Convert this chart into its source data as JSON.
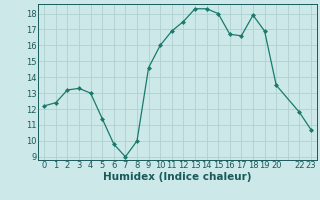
{
  "x": [
    0,
    1,
    2,
    3,
    4,
    5,
    6,
    7,
    8,
    9,
    10,
    11,
    12,
    13,
    14,
    15,
    16,
    17,
    18,
    19,
    20,
    22,
    23
  ],
  "y": [
    12.2,
    12.4,
    13.2,
    13.3,
    13.0,
    11.4,
    9.8,
    9.0,
    10.0,
    14.6,
    16.0,
    16.9,
    17.5,
    18.3,
    18.3,
    18.0,
    16.7,
    16.6,
    17.9,
    16.9,
    13.5,
    11.8,
    10.7
  ],
  "line_color": "#1a7a6e",
  "marker_color": "#1a7a6e",
  "bg_color": "#cce8e8",
  "grid_major_color": "#b0d0d0",
  "grid_minor_color": "#c4dede",
  "xlabel": "Humidex (Indice chaleur)",
  "xlim": [
    -0.5,
    23.5
  ],
  "ylim": [
    8.8,
    18.6
  ],
  "yticks": [
    9,
    10,
    11,
    12,
    13,
    14,
    15,
    16,
    17,
    18
  ],
  "xtick_positions": [
    0,
    1,
    2,
    3,
    4,
    5,
    6,
    7,
    8,
    9,
    10,
    11,
    12,
    13,
    14,
    15,
    16,
    17,
    18,
    19,
    20,
    22,
    23
  ],
  "xtick_labels": [
    "0",
    "1",
    "2",
    "3",
    "4",
    "5",
    "6",
    "7",
    "8",
    "9",
    "10",
    "11",
    "12",
    "13",
    "14",
    "15",
    "16",
    "17",
    "18",
    "19",
    "20",
    "22",
    "23"
  ],
  "font_color": "#1a5a5a",
  "tick_fontsize": 6.0,
  "xlabel_fontsize": 7.5
}
